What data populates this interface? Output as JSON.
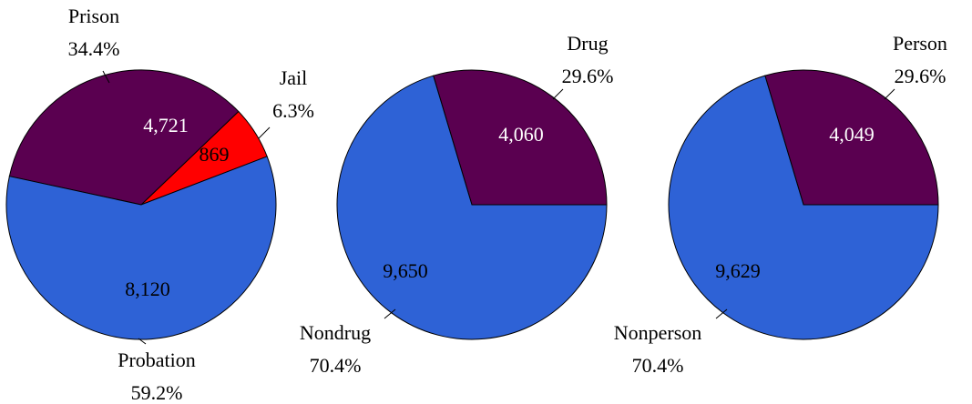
{
  "chart_data": [
    {
      "type": "pie",
      "categories": [
        "Jail",
        "Prison",
        "Probation"
      ],
      "values": [
        869,
        4721,
        8120
      ],
      "value_labels": [
        "869",
        "4,721",
        "8,120"
      ],
      "percents": [
        6.3,
        34.4,
        59.2
      ],
      "percent_labels": [
        "6.3%",
        "34.4%",
        "59.2%"
      ],
      "colors": [
        "#ff0000",
        "#5a0050",
        "#2e62d6"
      ]
    },
    {
      "type": "pie",
      "categories": [
        "Drug",
        "Nondrug"
      ],
      "values": [
        4060,
        9650
      ],
      "value_labels": [
        "4,060",
        "9,650"
      ],
      "percents": [
        29.6,
        70.4
      ],
      "percent_labels": [
        "29.6%",
        "70.4%"
      ],
      "colors": [
        "#5a0050",
        "#2e62d6"
      ]
    },
    {
      "type": "pie",
      "categories": [
        "Person",
        "Nonperson"
      ],
      "values": [
        4049,
        9629
      ],
      "value_labels": [
        "4,049",
        "9,629"
      ],
      "percents": [
        29.6,
        70.4
      ],
      "percent_labels": [
        "29.6%",
        "70.4%"
      ],
      "colors": [
        "#5a0050",
        "#2e62d6"
      ]
    }
  ]
}
